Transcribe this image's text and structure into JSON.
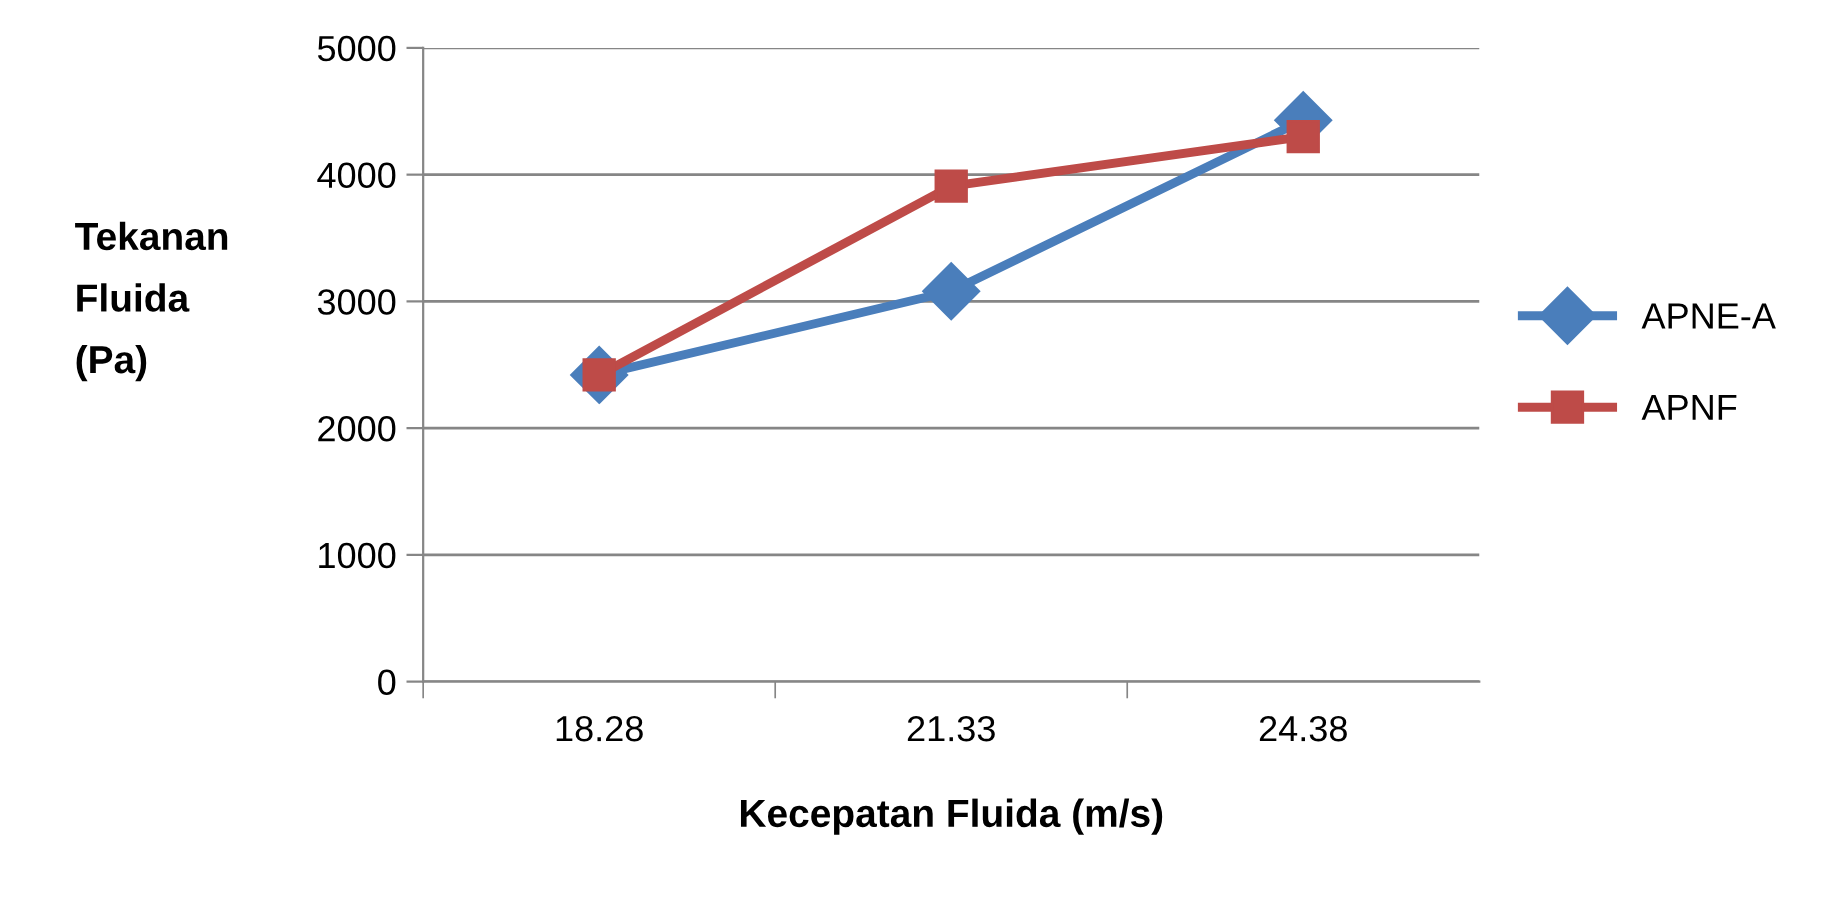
{
  "chart_data": {
    "type": "line",
    "xlabel": "Kecepatan Fluida (m/s)",
    "ylabel": "Tekanan\nFluida\n(Pa)",
    "categories": [
      "18.28",
      "21.33",
      "24.38"
    ],
    "series": [
      {
        "name": "APNE-A",
        "color": "#4a7ebb",
        "marker": "diamond",
        "values": [
          2420,
          3080,
          4430
        ]
      },
      {
        "name": "APNF",
        "color": "#be4b48",
        "marker": "square",
        "values": [
          2420,
          3910,
          4300
        ]
      }
    ],
    "ylim": [
      0,
      5000
    ],
    "yticks": [
      0,
      1000,
      2000,
      3000,
      4000,
      5000
    ],
    "grid": "y",
    "legend": "right",
    "line_style": "solid"
  }
}
